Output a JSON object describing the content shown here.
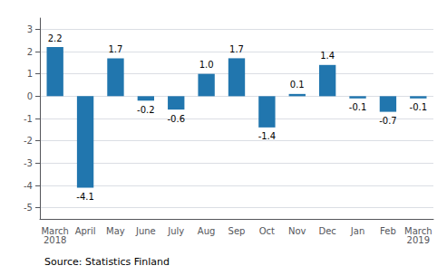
{
  "chart_data": {
    "type": "bar",
    "categories": [
      "March\n2018",
      "April",
      "May",
      "June",
      "July",
      "Aug",
      "Sep",
      "Oct",
      "Nov",
      "Dec",
      "Jan",
      "Feb",
      "March\n2019"
    ],
    "values": [
      2.2,
      -4.1,
      1.7,
      -0.2,
      -0.6,
      1.0,
      1.7,
      -1.4,
      0.1,
      1.4,
      -0.1,
      -0.7,
      -0.1
    ],
    "value_labels": [
      "2.2",
      "-4.1",
      "1.7",
      "-0.2",
      "-0.6",
      "1.0",
      "1.7",
      "-1.4",
      "0.1",
      "1.4",
      "-0.1",
      "-0.7",
      "-0.1"
    ],
    "data_labels": true,
    "color": "#2176ae",
    "ylim": [
      -5.5,
      3.5
    ],
    "yticks": [
      -5,
      -4,
      -3,
      -2,
      -1,
      0,
      1,
      2,
      3
    ],
    "grid": true,
    "annotations": [
      "Source: Statistics Finland"
    ]
  }
}
